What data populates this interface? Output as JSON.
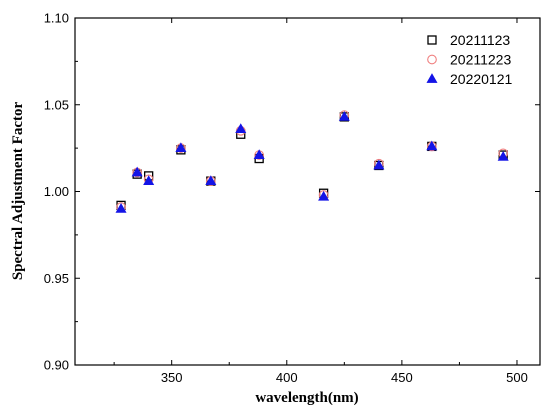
{
  "chart_data": {
    "type": "scatter",
    "title": "",
    "xlabel": "wavelength(nm)",
    "ylabel": "Spectral  Adjustment Factor",
    "xlim": [
      308,
      510
    ],
    "ylim": [
      0.9,
      1.1
    ],
    "xticks": [
      350,
      400,
      450,
      500
    ],
    "yticks": [
      0.9,
      0.95,
      1.0,
      1.05,
      1.1
    ],
    "xtick_labels": [
      "350",
      "400",
      "450",
      "500"
    ],
    "ytick_labels": [
      "0.90",
      "0.95",
      "1.00",
      "1.05",
      "1.10"
    ],
    "grid": false,
    "legend_position": "top-right",
    "series": [
      {
        "name": "20211123",
        "marker": "open-square",
        "color": "#000000",
        "x": [
          328,
          335,
          340,
          354,
          367,
          380,
          388,
          416,
          425,
          440,
          463,
          494
        ],
        "y": [
          0.992,
          1.01,
          1.009,
          1.024,
          1.006,
          1.033,
          1.019,
          0.999,
          1.043,
          1.015,
          1.026,
          1.021
        ]
      },
      {
        "name": "20211223",
        "marker": "open-circle",
        "color": "#f08080",
        "x": [
          328,
          335,
          340,
          354,
          367,
          380,
          388,
          416,
          425,
          440,
          463,
          494
        ],
        "y": [
          0.991,
          1.011,
          1.007,
          1.025,
          1.006,
          1.035,
          1.021,
          0.998,
          1.044,
          1.016,
          1.026,
          1.022
        ]
      },
      {
        "name": "20220121",
        "marker": "filled-triangle",
        "color": "#1414e6",
        "x": [
          328,
          335,
          340,
          354,
          367,
          380,
          388,
          416,
          425,
          440,
          463,
          494
        ],
        "y": [
          0.99,
          1.011,
          1.006,
          1.025,
          1.006,
          1.036,
          1.021,
          0.997,
          1.043,
          1.015,
          1.026,
          1.02
        ]
      }
    ]
  }
}
